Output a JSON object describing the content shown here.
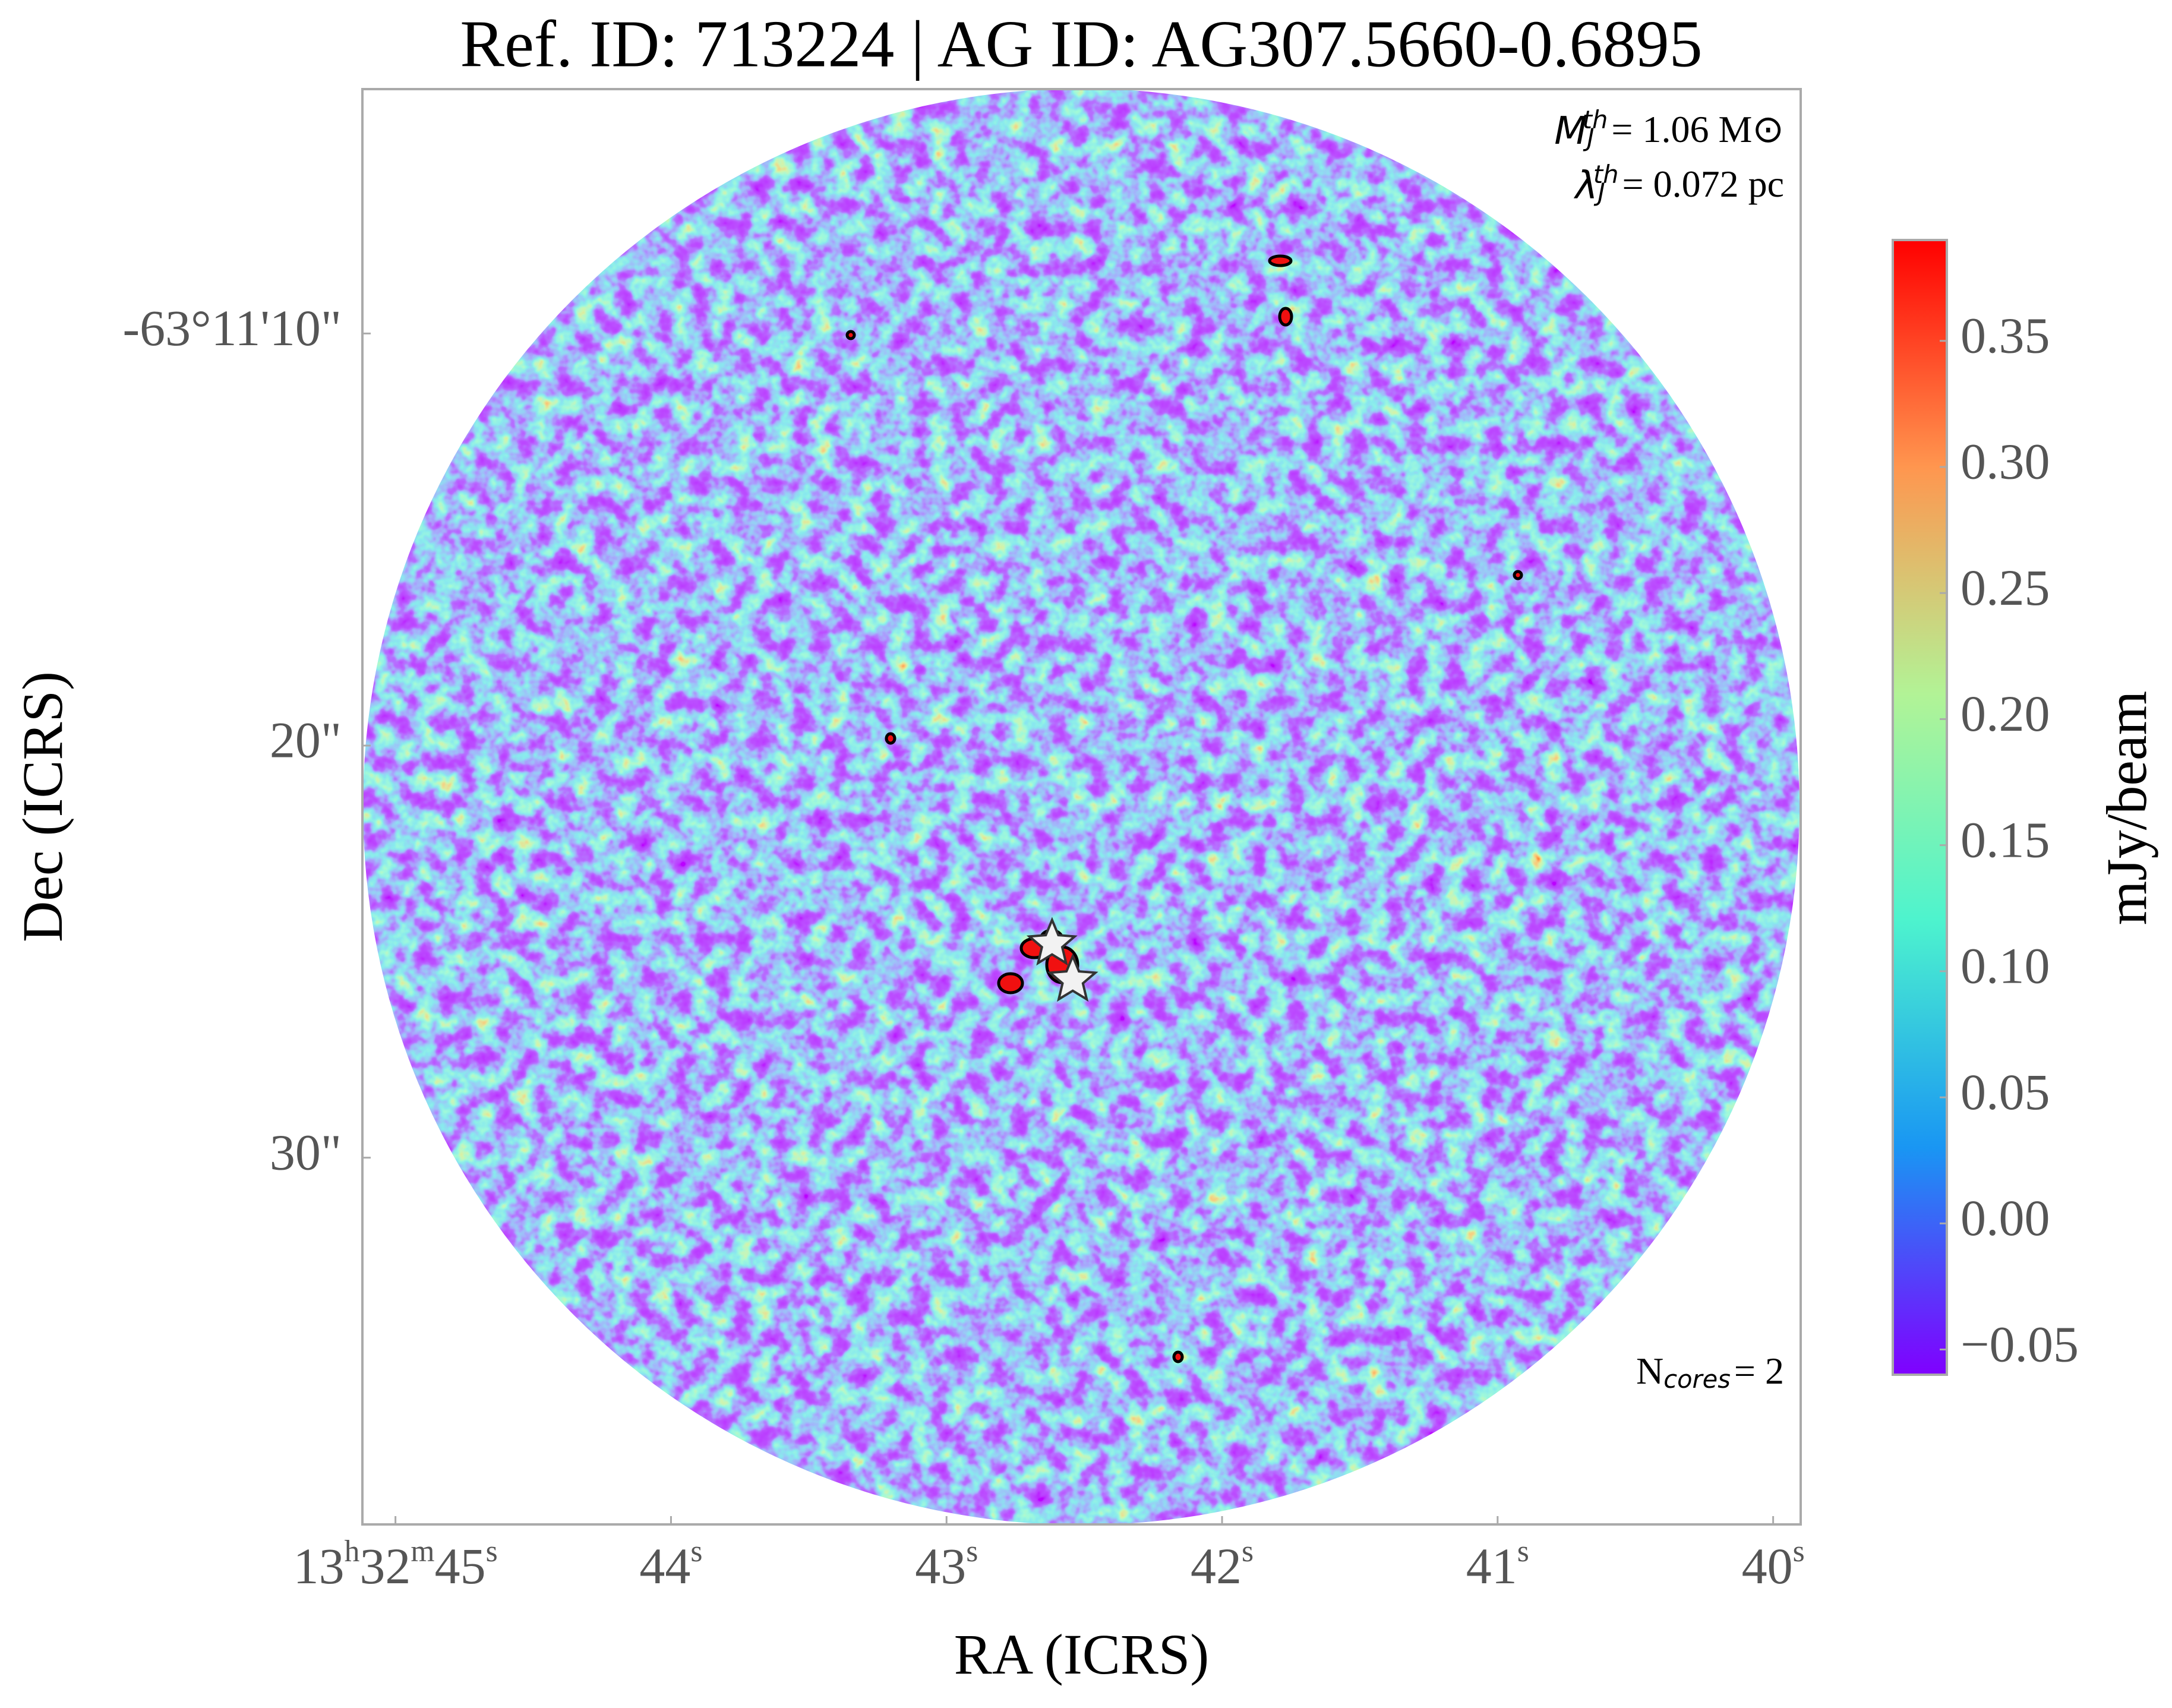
{
  "chart_data": {
    "type": "image",
    "title": "Ref. ID: 713224 | AG ID: AG307.5660-0.6895",
    "x_label": "RA (ICRS)",
    "y_label": "Dec (ICRS)",
    "xlim": [
      45.12,
      39.9
    ],
    "xticks": [
      {
        "value": 45,
        "label": "13h32m45s"
      },
      {
        "value": 44,
        "label": "44s"
      },
      {
        "value": 43,
        "label": "43s"
      },
      {
        "value": 42,
        "label": "42s"
      },
      {
        "value": 41,
        "label": "41s"
      },
      {
        "value": 40,
        "label": "40s"
      }
    ],
    "ylim": [
      4.07,
      38.9
    ],
    "yticks": [
      {
        "value": 10,
        "label": "-63°11'10\""
      },
      {
        "value": 20,
        "label": "20\""
      },
      {
        "value": 30,
        "label": "30\""
      }
    ],
    "colorbar": {
      "label": "mJy/beam",
      "lim": [
        -0.06,
        0.39
      ],
      "ticks": [
        {
          "value": -0.05,
          "label": "−0.05"
        },
        {
          "value": 0,
          "label": "0.00"
        },
        {
          "value": 0.05,
          "label": "0.05"
        },
        {
          "value": 0.1,
          "label": "0.10"
        },
        {
          "value": 0.15,
          "label": "0.15"
        },
        {
          "value": 0.2,
          "label": "0.20"
        },
        {
          "value": 0.25,
          "label": "0.25"
        },
        {
          "value": 0.3,
          "label": "0.30"
        },
        {
          "value": 0.35,
          "label": "0.35"
        }
      ],
      "colormap": [
        "#8000ff",
        "#1996f3",
        "#4df3ce",
        "#b2f396",
        "#ff964f",
        "#ff0000"
      ]
    },
    "annotations": [
      {
        "symbol": "M",
        "sub": "J",
        "sup": "th",
        "text": "= 1.06 M⊙"
      },
      {
        "symbol": "λ",
        "sub": "J",
        "sup": "th",
        "text": "= 0.072 pc"
      },
      {
        "symbol": "N",
        "sub": "cores",
        "text": "= 2"
      }
    ],
    "cores": {
      "x": [
        42.617,
        42.542
      ],
      "y": [
        24.81,
        25.69
      ]
    }
  }
}
